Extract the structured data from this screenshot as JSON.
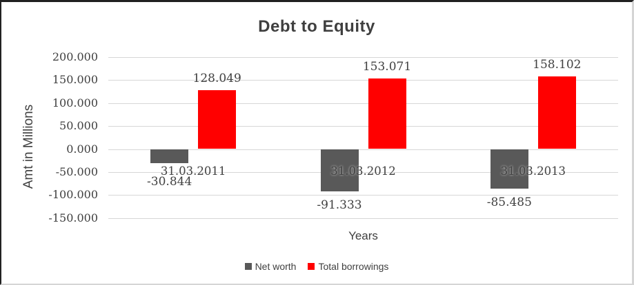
{
  "colors": {
    "net_worth_bar": "#595959",
    "total_borrowings_bar": "#ff0000",
    "text": "#404040",
    "title_text": "#3f3f3f",
    "gridline": "#d6d6d6",
    "frame_dark_border": "#212121",
    "frame_light_border": "#d5d5d5"
  },
  "chart_data": {
    "type": "bar",
    "title": "Debt to Equity",
    "xlabel": "Years",
    "ylabel": "Amt in Millions",
    "categories": [
      "31.03.2011",
      "31.03.2012",
      "31.03.2013"
    ],
    "series": [
      {
        "name": "Net worth",
        "color": "#595959",
        "values": [
          -30.844,
          -91.333,
          -85.485
        ],
        "labels": [
          "-30.844",
          "-91.333",
          "-85.485"
        ]
      },
      {
        "name": "Total borrowings",
        "color": "#ff0000",
        "values": [
          128.049,
          153.071,
          158.102
        ],
        "labels": [
          "128.049",
          "153.071",
          "158.102"
        ]
      }
    ],
    "y_ticks": [
      200,
      150,
      100,
      50,
      0,
      -50,
      -100,
      -150
    ],
    "y_tick_labels": [
      "200.000",
      "150.000",
      "100.000",
      "50.000",
      "0.000",
      "-50.000",
      "-100.000",
      "-150.000"
    ],
    "ylim": [
      -150,
      200
    ],
    "grid": true,
    "legend_position": "bottom"
  }
}
